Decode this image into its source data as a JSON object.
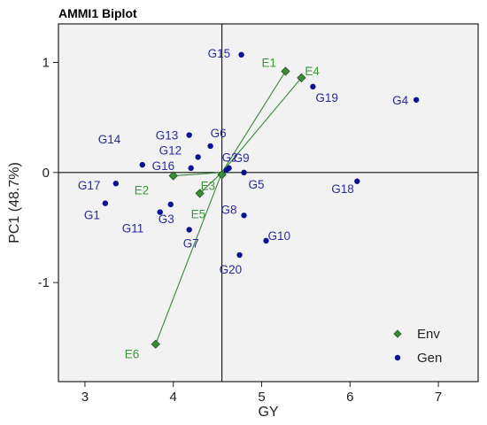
{
  "chart_data": {
    "type": "scatter",
    "title": "AMMI1 Biplot",
    "xlabel": "GY",
    "ylabel": "PC1 (48.7%)",
    "xlim": [
      2.7,
      7.45
    ],
    "ylim": [
      -1.9,
      1.35
    ],
    "xticks": [
      3,
      4,
      5,
      6,
      7
    ],
    "yticks": [
      -1,
      0,
      1
    ],
    "grid": false,
    "legend_position": "bottom-right",
    "reference_lines": {
      "x": 4.55,
      "y": 0
    },
    "colors": {
      "env": "#3a8a3a",
      "env_label": "#3b9a3b",
      "gen": "#0b1294",
      "gen_label": "#2a2a9a",
      "panel": "#f2f2f2"
    },
    "series": [
      {
        "name": "Env",
        "marker": "diamond",
        "points": [
          {
            "label": "E1",
            "x": 5.27,
            "y": 0.92
          },
          {
            "label": "E2",
            "x": 4.0,
            "y": -0.03
          },
          {
            "label": "E3",
            "x": 4.55,
            "y": -0.02
          },
          {
            "label": "E4",
            "x": 5.45,
            "y": 0.86
          },
          {
            "label": "E5",
            "x": 4.3,
            "y": -0.19
          },
          {
            "label": "E6",
            "x": 3.8,
            "y": -1.56
          }
        ]
      },
      {
        "name": "Gen",
        "marker": "circle",
        "points": [
          {
            "label": "G1",
            "x": 3.23,
            "y": -0.28
          },
          {
            "label": "G2",
            "x": 4.6,
            "y": 0.02
          },
          {
            "label": "G3",
            "x": 3.97,
            "y": -0.29
          },
          {
            "label": "G4",
            "x": 6.75,
            "y": 0.66
          },
          {
            "label": "G5",
            "x": 4.8,
            "y": 0.0
          },
          {
            "label": "G6",
            "x": 4.42,
            "y": 0.24
          },
          {
            "label": "G7",
            "x": 4.18,
            "y": -0.52
          },
          {
            "label": "G8",
            "x": 4.8,
            "y": -0.39
          },
          {
            "label": "G9",
            "x": 4.63,
            "y": 0.04
          },
          {
            "label": "G10",
            "x": 5.05,
            "y": -0.62
          },
          {
            "label": "G11",
            "x": 3.85,
            "y": -0.36
          },
          {
            "label": "G12",
            "x": 4.28,
            "y": 0.14
          },
          {
            "label": "G13",
            "x": 4.18,
            "y": 0.34
          },
          {
            "label": "G14",
            "x": 3.65,
            "y": 0.07
          },
          {
            "label": "G15",
            "x": 4.77,
            "y": 1.07
          },
          {
            "label": "G16",
            "x": 4.2,
            "y": 0.04
          },
          {
            "label": "G17",
            "x": 3.35,
            "y": -0.1
          },
          {
            "label": "G18",
            "x": 6.08,
            "y": -0.08
          },
          {
            "label": "G19",
            "x": 5.58,
            "y": 0.78
          },
          {
            "label": "G20",
            "x": 4.75,
            "y": -0.75
          }
        ]
      }
    ]
  }
}
